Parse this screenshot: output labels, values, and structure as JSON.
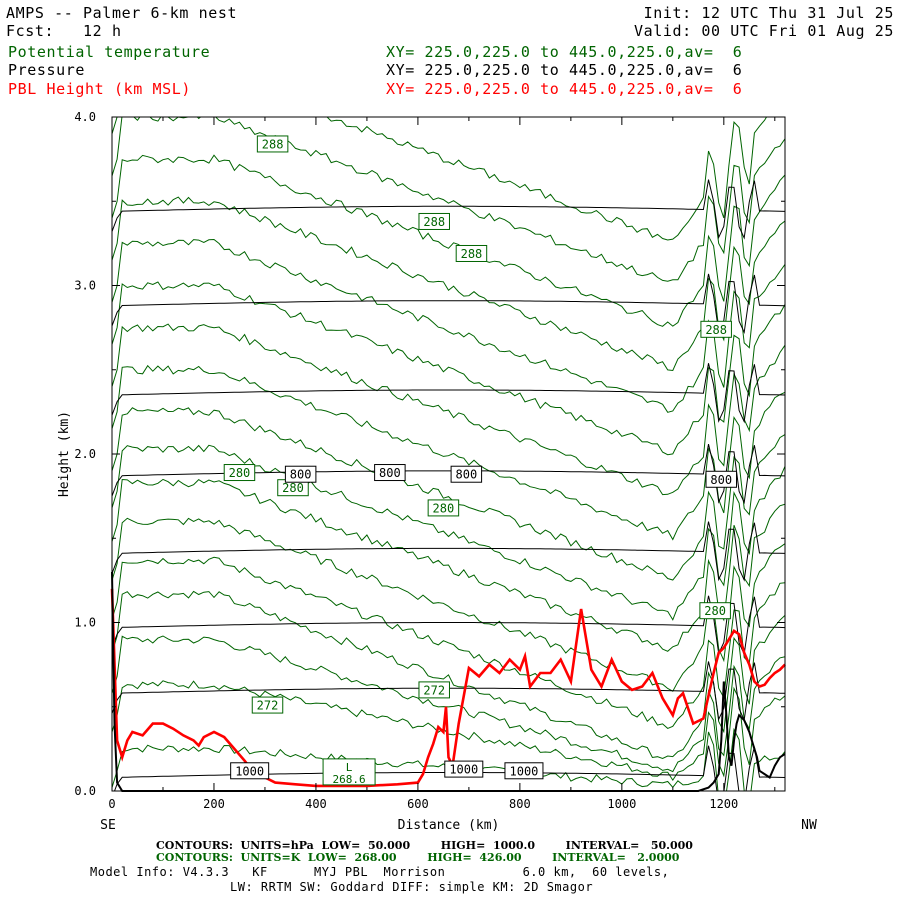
{
  "header": {
    "title": "AMPS -- Palmer 6-km nest",
    "fcst": "Fcst:   12 h",
    "init": "Init: 12 UTC Thu 31 Jul 25",
    "valid": "Valid: 00 UTC Fri 01 Aug 25",
    "fields": [
      {
        "name": "Potential temperature",
        "xy": "XY= 225.0,225.0 to 445.0,225.0,av=  6",
        "color": "#006400"
      },
      {
        "name": "Pressure",
        "xy": "XY= 225.0,225.0 to 445.0,225.0,av=  6",
        "color": "#000000"
      },
      {
        "name": "PBL Height (km MSL)",
        "xy": "XY= 225.0,225.0 to 445.0,225.0,av=  6",
        "color": "#ff0000"
      }
    ]
  },
  "chart_data": {
    "type": "line",
    "xlabel": "Distance (km)",
    "ylabel": "Height (km)",
    "xlim": [
      0,
      1320
    ],
    "ylim": [
      0,
      4.0
    ],
    "x_ticks": [
      "0",
      "200",
      "400",
      "600",
      "800",
      "1000",
      "1200"
    ],
    "y_ticks": [
      "0.0",
      "1.0",
      "2.0",
      "3.0",
      "4.0"
    ],
    "x_end_labels": {
      "left": "SE",
      "right": "NW"
    },
    "grid": false,
    "pressure_contours": {
      "color": "#000000",
      "levels": [
        {
          "height": 0.08,
          "label": "1000"
        },
        {
          "height": 0.58
        },
        {
          "height": 0.97
        },
        {
          "height": 1.41
        },
        {
          "height": 1.87,
          "label": "800"
        },
        {
          "height": 2.35
        },
        {
          "height": 2.88
        },
        {
          "height": 3.44
        }
      ],
      "labels": [
        {
          "text": "1000",
          "x": 270,
          "y": 0.12
        },
        {
          "text": "1000",
          "x": 690,
          "y": 0.13
        },
        {
          "text": "1000",
          "x": 808,
          "y": 0.12
        },
        {
          "text": "800",
          "x": 370,
          "y": 1.88
        },
        {
          "text": "800",
          "x": 545,
          "y": 1.89
        },
        {
          "text": "800",
          "x": 695,
          "y": 1.88
        },
        {
          "text": "800",
          "x": 1195,
          "y": 1.85
        }
      ]
    },
    "theta_contours": {
      "color": "#006400",
      "labels": [
        {
          "text": "288",
          "x": 315,
          "y": 3.84
        },
        {
          "text": "288",
          "x": 632,
          "y": 3.38
        },
        {
          "text": "288",
          "x": 705,
          "y": 3.19
        },
        {
          "text": "288",
          "x": 1185,
          "y": 2.74
        },
        {
          "text": "280",
          "x": 250,
          "y": 1.89
        },
        {
          "text": "280",
          "x": 355,
          "y": 1.8
        },
        {
          "text": "280",
          "x": 650,
          "y": 1.68
        },
        {
          "text": "280",
          "x": 1183,
          "y": 1.07
        },
        {
          "text": "272",
          "x": 305,
          "y": 0.51
        },
        {
          "text": "272",
          "x": 632,
          "y": 0.6
        }
      ],
      "low": {
        "marker": "L",
        "value": "268.6",
        "x": 465,
        "y": 0.06
      }
    },
    "series": [
      {
        "name": "PBL Height (km MSL)",
        "color": "#ff0000",
        "x": [
          0,
          10,
          20,
          30,
          40,
          60,
          80,
          100,
          120,
          140,
          160,
          170,
          180,
          200,
          220,
          240,
          260,
          280,
          300,
          320,
          360,
          400,
          450,
          500,
          560,
          600,
          610,
          620,
          630,
          640,
          650,
          655,
          660,
          668,
          680,
          700,
          720,
          740,
          760,
          780,
          800,
          810,
          820,
          840,
          860,
          880,
          900,
          920,
          940,
          960,
          980,
          1000,
          1020,
          1040,
          1060,
          1080,
          1100,
          1110,
          1120,
          1140,
          1160,
          1180,
          1190,
          1200,
          1210,
          1220,
          1230,
          1240,
          1250,
          1260,
          1270,
          1280,
          1290,
          1300,
          1310,
          1320
        ],
        "y": [
          1.2,
          0.3,
          0.2,
          0.3,
          0.35,
          0.33,
          0.4,
          0.4,
          0.37,
          0.33,
          0.3,
          0.27,
          0.32,
          0.35,
          0.32,
          0.25,
          0.18,
          0.1,
          0.08,
          0.05,
          0.04,
          0.03,
          0.03,
          0.03,
          0.04,
          0.05,
          0.1,
          0.2,
          0.28,
          0.38,
          0.35,
          0.5,
          0.2,
          0.15,
          0.4,
          0.73,
          0.68,
          0.75,
          0.7,
          0.78,
          0.72,
          0.8,
          0.62,
          0.7,
          0.7,
          0.78,
          0.65,
          1.08,
          0.72,
          0.62,
          0.78,
          0.65,
          0.6,
          0.62,
          0.7,
          0.55,
          0.45,
          0.55,
          0.58,
          0.4,
          0.43,
          0.7,
          0.82,
          0.85,
          0.9,
          0.95,
          0.93,
          0.82,
          0.75,
          0.65,
          0.62,
          0.63,
          0.67,
          0.7,
          0.72,
          0.75
        ]
      },
      {
        "name": "Terrain",
        "color": "#000000",
        "x": [
          0,
          5,
          10,
          20,
          1150,
          1170,
          1180,
          1190,
          1195,
          1200,
          1205,
          1210,
          1215,
          1220,
          1225,
          1230,
          1240,
          1250,
          1260,
          1265,
          1270,
          1280,
          1290,
          1300,
          1310,
          1320
        ],
        "y": [
          1.3,
          0.4,
          0.05,
          0.0,
          0.0,
          0.02,
          0.05,
          0.1,
          0.3,
          0.65,
          0.45,
          0.2,
          0.15,
          0.3,
          0.4,
          0.45,
          0.42,
          0.35,
          0.25,
          0.2,
          0.12,
          0.1,
          0.08,
          0.15,
          0.2,
          0.22
        ]
      }
    ]
  },
  "footer": {
    "pressure": "CONTOURS:  UNITS=hPa  LOW=  50.000        HIGH=  1000.0        INTERVAL=   50.000",
    "theta": "CONTOURS:  UNITS=K  LOW=  268.00        HIGH=  426.00        INTERVAL=   2.0000",
    "model1": "Model Info: V4.3.3   KF      MYJ PBL  Morrison          6.0 km,  60 levels,",
    "model2": "LW: RRTM SW: Goddard DIFF: simple KM: 2D Smagor"
  }
}
